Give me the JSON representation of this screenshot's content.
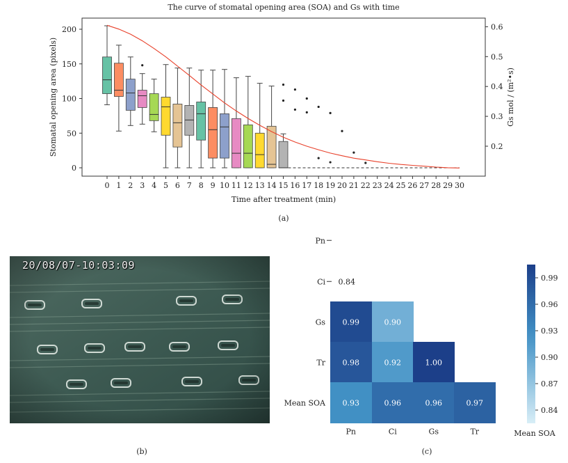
{
  "chart_data": [
    {
      "type": "box",
      "title": "The curve of stomatal opening area (SOA) and Gs with time",
      "xlabel": "Time after treatment (min)",
      "ylabel": "Stomatal opening area (pixels)",
      "y2label": "Gs mol / (m²•s)",
      "ylim": [
        0,
        210
      ],
      "y2lim": [
        0.12,
        0.62
      ],
      "yticks": [
        0,
        50,
        100,
        150,
        200
      ],
      "y2ticks": [
        0.2,
        0.3,
        0.4,
        0.5,
        0.6
      ],
      "categories": [
        0,
        1,
        2,
        3,
        4,
        5,
        6,
        7,
        8,
        9,
        10,
        11,
        12,
        13,
        14,
        15,
        16,
        17,
        18,
        19,
        20,
        21,
        22,
        23,
        24,
        25,
        26,
        27,
        28,
        29,
        30
      ],
      "boxes": [
        {
          "t": 0,
          "min": 91,
          "q1": 107,
          "median": 127,
          "q3": 160,
          "max": 205,
          "color": "#66c2a5"
        },
        {
          "t": 1,
          "min": 53,
          "q1": 103,
          "median": 112,
          "q3": 151,
          "max": 177,
          "color": "#fc8d62"
        },
        {
          "t": 2,
          "min": 61,
          "q1": 83,
          "median": 108,
          "q3": 128,
          "max": 160,
          "color": "#8da0cb"
        },
        {
          "t": 3,
          "min": 63,
          "q1": 87,
          "median": 104,
          "q3": 112,
          "max": 136,
          "color": "#e78ac3"
        },
        {
          "t": 4,
          "min": 52,
          "q1": 68,
          "median": 77,
          "q3": 107,
          "max": 128,
          "color": "#a6d854"
        },
        {
          "t": 5,
          "min": 0,
          "q1": 47,
          "median": 88,
          "q3": 102,
          "max": 149,
          "color": "#ffd92f"
        },
        {
          "t": 6,
          "min": 0,
          "q1": 30,
          "median": 65,
          "q3": 92,
          "max": 144,
          "color": "#e5c494"
        },
        {
          "t": 7,
          "min": 0,
          "q1": 47,
          "median": 69,
          "q3": 90,
          "max": 144,
          "color": "#b3b3b3"
        },
        {
          "t": 8,
          "min": 0,
          "q1": 40,
          "median": 78,
          "q3": 95,
          "max": 141,
          "color": "#66c2a5"
        },
        {
          "t": 9,
          "min": 0,
          "q1": 14,
          "median": 55,
          "q3": 87,
          "max": 141,
          "color": "#fc8d62"
        },
        {
          "t": 10,
          "min": 0,
          "q1": 14,
          "median": 59,
          "q3": 78,
          "max": 142,
          "color": "#8da0cb"
        },
        {
          "t": 11,
          "min": 0,
          "q1": 0,
          "median": 21,
          "q3": 71,
          "max": 130,
          "color": "#e78ac3"
        },
        {
          "t": 12,
          "min": 0,
          "q1": 0,
          "median": 21,
          "q3": 62,
          "max": 132,
          "color": "#a6d854"
        },
        {
          "t": 13,
          "min": 0,
          "q1": 0,
          "median": 19,
          "q3": 50,
          "max": 122,
          "color": "#ffd92f"
        },
        {
          "t": 14,
          "min": 0,
          "q1": 0,
          "median": 5,
          "q3": 60,
          "max": 118,
          "color": "#e5c494"
        },
        {
          "t": 15,
          "min": 0,
          "q1": 0,
          "median": 0,
          "q3": 38,
          "max": 49,
          "color": "#b3b3b3"
        }
      ],
      "outliers": [
        {
          "t": 3,
          "y": 148
        },
        {
          "t": 15,
          "y": 120
        },
        {
          "t": 15,
          "y": 97
        },
        {
          "t": 16,
          "y": 113
        },
        {
          "t": 16,
          "y": 84
        },
        {
          "t": 17,
          "y": 100
        },
        {
          "t": 17,
          "y": 80
        },
        {
          "t": 18,
          "y": 88
        },
        {
          "t": 18,
          "y": 14
        },
        {
          "t": 19,
          "y": 79
        },
        {
          "t": 19,
          "y": 8
        },
        {
          "t": 20,
          "y": 53
        },
        {
          "t": 21,
          "y": 22
        },
        {
          "t": 22,
          "y": 7
        }
      ],
      "gs_curve": [
        {
          "t": 0,
          "gs": 0.605
        },
        {
          "t": 1,
          "gs": 0.592
        },
        {
          "t": 2,
          "gs": 0.575
        },
        {
          "t": 3,
          "gs": 0.553
        },
        {
          "t": 4,
          "gs": 0.527
        },
        {
          "t": 5,
          "gs": 0.499
        },
        {
          "t": 6,
          "gs": 0.468
        },
        {
          "t": 7,
          "gs": 0.437
        },
        {
          "t": 8,
          "gs": 0.405
        },
        {
          "t": 9,
          "gs": 0.375
        },
        {
          "t": 10,
          "gs": 0.345
        },
        {
          "t": 11,
          "gs": 0.318
        },
        {
          "t": 12,
          "gs": 0.293
        },
        {
          "t": 13,
          "gs": 0.27
        },
        {
          "t": 14,
          "gs": 0.249
        },
        {
          "t": 15,
          "gs": 0.23
        },
        {
          "t": 16,
          "gs": 0.214
        },
        {
          "t": 17,
          "gs": 0.2
        },
        {
          "t": 18,
          "gs": 0.188
        },
        {
          "t": 19,
          "gs": 0.177
        },
        {
          "t": 20,
          "gs": 0.168
        },
        {
          "t": 21,
          "gs": 0.16
        },
        {
          "t": 22,
          "gs": 0.154
        },
        {
          "t": 23,
          "gs": 0.148
        },
        {
          "t": 24,
          "gs": 0.143
        },
        {
          "t": 25,
          "gs": 0.139
        },
        {
          "t": 26,
          "gs": 0.136
        },
        {
          "t": 27,
          "gs": 0.133
        },
        {
          "t": 28,
          "gs": 0.13
        },
        {
          "t": 29,
          "gs": 0.128
        },
        {
          "t": 30,
          "gs": 0.127
        }
      ],
      "gs_color": "#e8402a",
      "zero_line": {
        "from_t": 15,
        "to_t": 30,
        "value": 0
      },
      "panel_label": "(a)"
    },
    {
      "type": "heatmap",
      "rows": [
        "Pn",
        "Ci",
        "Gs",
        "Tr",
        "Mean SOA"
      ],
      "cols": [
        "Pn",
        "Ci",
        "Gs",
        "Tr"
      ],
      "cells": [
        {
          "row": "Ci",
          "col": "Pn",
          "value": "0.84",
          "text_only": true
        },
        {
          "row": "Gs",
          "col": "Pn",
          "value": "0.99"
        },
        {
          "row": "Gs",
          "col": "Ci",
          "value": "0.90"
        },
        {
          "row": "Tr",
          "col": "Pn",
          "value": "0.98"
        },
        {
          "row": "Tr",
          "col": "Ci",
          "value": "0.92"
        },
        {
          "row": "Tr",
          "col": "Gs",
          "value": "1.00"
        },
        {
          "row": "Mean SOA",
          "col": "Pn",
          "value": "0.93"
        },
        {
          "row": "Mean SOA",
          "col": "Ci",
          "value": "0.96"
        },
        {
          "row": "Mean SOA",
          "col": "Gs",
          "value": "0.96"
        },
        {
          "row": "Mean SOA",
          "col": "Tr",
          "value": "0.97"
        }
      ],
      "colorbar_ticks": [
        "0.99",
        "0.96",
        "0.93",
        "0.90",
        "0.87",
        "0.84"
      ],
      "colorbar_label": "Mean SOA",
      "color_low": "#d8eef7",
      "color_high": "#1c3f89",
      "panel_label": "(c)"
    }
  ],
  "photo": {
    "timestamp": "20/08/07-10:03:09",
    "panel_label": "(b)"
  }
}
